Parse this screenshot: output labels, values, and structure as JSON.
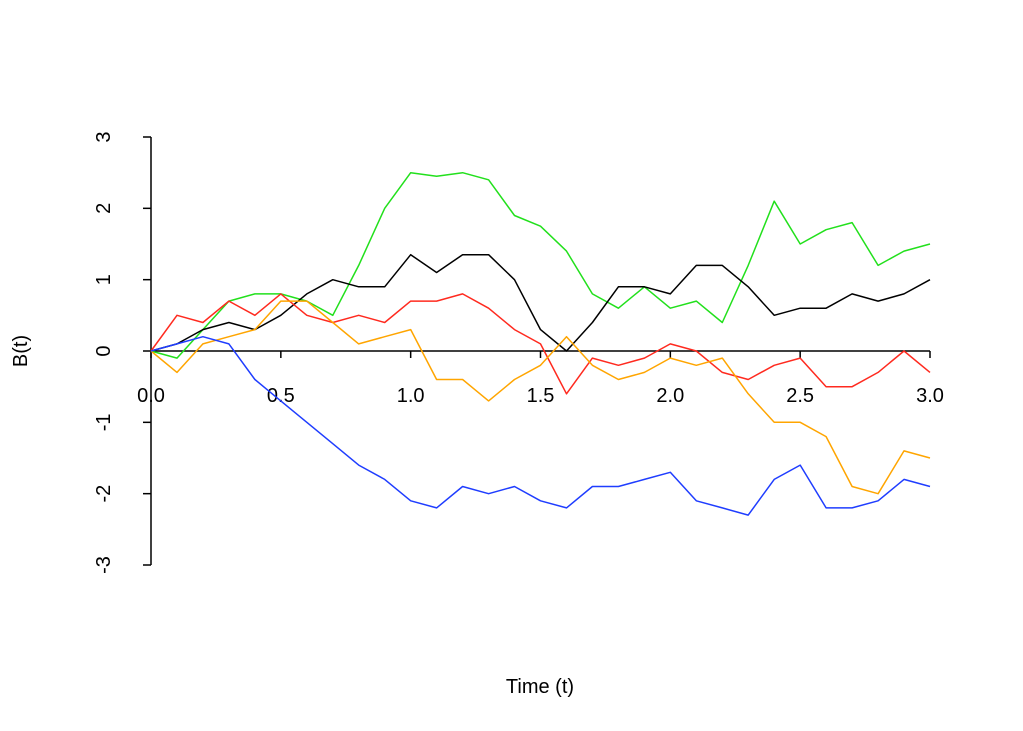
{
  "chart_data": {
    "type": "line",
    "title": "",
    "xlabel": "Time (t)",
    "ylabel": "B(t)",
    "xlim": [
      0,
      3
    ],
    "ylim": [
      -3,
      3
    ],
    "x_ticks": [
      "0.0",
      "0.5",
      "1.0",
      "1.5",
      "2.0",
      "2.5",
      "3.0"
    ],
    "x_tick_values": [
      0,
      0.5,
      1,
      1.5,
      2,
      2.5,
      3
    ],
    "y_ticks": [
      "-3",
      "-2",
      "-1",
      "0",
      "1",
      "2",
      "3"
    ],
    "y_tick_values": [
      -3,
      -2,
      -1,
      0,
      1,
      2,
      3
    ],
    "grid": false,
    "x": [
      0,
      0.1,
      0.2,
      0.3,
      0.4,
      0.5,
      0.6,
      0.7,
      0.8,
      0.9,
      1.0,
      1.1,
      1.2,
      1.3,
      1.4,
      1.5,
      1.6,
      1.7,
      1.8,
      1.9,
      2.0,
      2.1,
      2.2,
      2.3,
      2.4,
      2.5,
      2.6,
      2.7,
      2.8,
      2.9,
      3.0
    ],
    "series": [
      {
        "name": "path-green",
        "color": "#22e01c",
        "values": [
          0,
          -0.1,
          0.3,
          0.7,
          0.8,
          0.8,
          0.7,
          0.5,
          1.2,
          2.0,
          2.5,
          2.45,
          2.5,
          2.4,
          1.9,
          1.75,
          1.4,
          0.8,
          0.6,
          0.9,
          0.6,
          0.7,
          0.4,
          1.2,
          2.1,
          1.5,
          1.7,
          1.8,
          1.2,
          1.4,
          1.5
        ]
      },
      {
        "name": "path-black",
        "color": "#000000",
        "values": [
          0,
          0.1,
          0.3,
          0.4,
          0.3,
          0.5,
          0.8,
          1.0,
          0.9,
          0.9,
          1.35,
          1.1,
          1.35,
          1.35,
          1.0,
          0.3,
          0.0,
          0.4,
          0.9,
          0.9,
          0.8,
          1.2,
          1.2,
          0.9,
          0.5,
          0.6,
          0.6,
          0.8,
          0.7,
          0.8,
          1.0
        ]
      },
      {
        "name": "path-red",
        "color": "#ff2a1f",
        "values": [
          0,
          0.5,
          0.4,
          0.7,
          0.5,
          0.8,
          0.5,
          0.4,
          0.5,
          0.4,
          0.7,
          0.7,
          0.8,
          0.6,
          0.3,
          0.1,
          -0.6,
          -0.1,
          -0.2,
          -0.1,
          0.1,
          0.0,
          -0.3,
          -0.4,
          -0.2,
          -0.1,
          -0.5,
          -0.5,
          -0.3,
          0.0,
          -0.3
        ]
      },
      {
        "name": "path-orange",
        "color": "#ffa500",
        "values": [
          0,
          -0.3,
          0.1,
          0.2,
          0.3,
          0.7,
          0.7,
          0.4,
          0.1,
          0.2,
          0.3,
          -0.4,
          -0.4,
          -0.7,
          -0.4,
          -0.2,
          0.2,
          -0.2,
          -0.4,
          -0.3,
          -0.1,
          -0.2,
          -0.1,
          -0.6,
          -1.0,
          -1.0,
          -1.2,
          -1.9,
          -2.0,
          -1.4,
          -1.5
        ]
      },
      {
        "name": "path-blue",
        "color": "#1f3dff",
        "values": [
          0,
          0.1,
          0.2,
          0.1,
          -0.4,
          -0.7,
          -1.0,
          -1.3,
          -1.6,
          -1.8,
          -2.1,
          -2.2,
          -1.9,
          -2.0,
          -1.9,
          -2.1,
          -2.2,
          -1.9,
          -1.9,
          -1.8,
          -1.7,
          -2.1,
          -2.2,
          -2.3,
          -1.8,
          -1.6,
          -2.2,
          -2.2,
          -2.1,
          -1.8,
          -1.9
        ]
      }
    ]
  }
}
